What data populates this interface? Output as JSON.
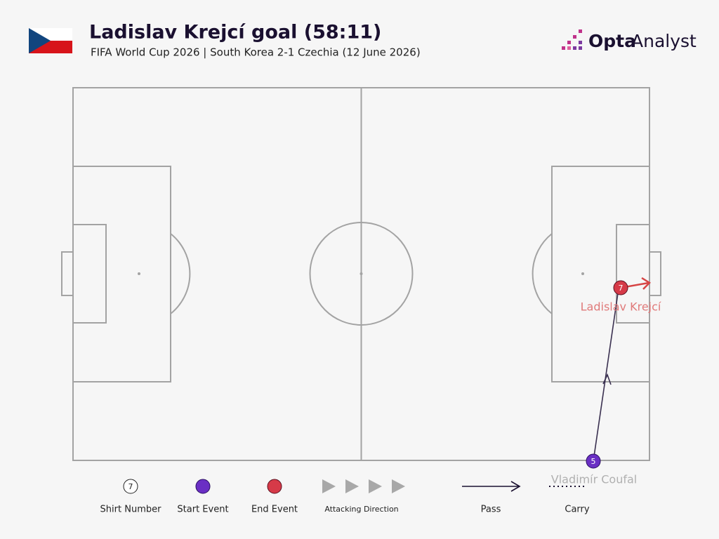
{
  "header": {
    "title": "Ladislav Krejcí goal (58:11)",
    "subtitle": "FIFA World Cup 2026 | South Korea 2-1 Czechia (12 June 2026)",
    "brand": {
      "strong": "Opta",
      "light": "Analyst"
    }
  },
  "players": [
    {
      "number": "5",
      "name": "Vladimír Coufal"
    },
    {
      "number": "7",
      "name": "Ladislav Krejcí"
    }
  ],
  "legend": {
    "shirt_example": "7",
    "items": [
      "Shirt Number",
      "Start Event",
      "End Event",
      "Attacking Direction",
      "Pass",
      "Carry"
    ]
  }
}
